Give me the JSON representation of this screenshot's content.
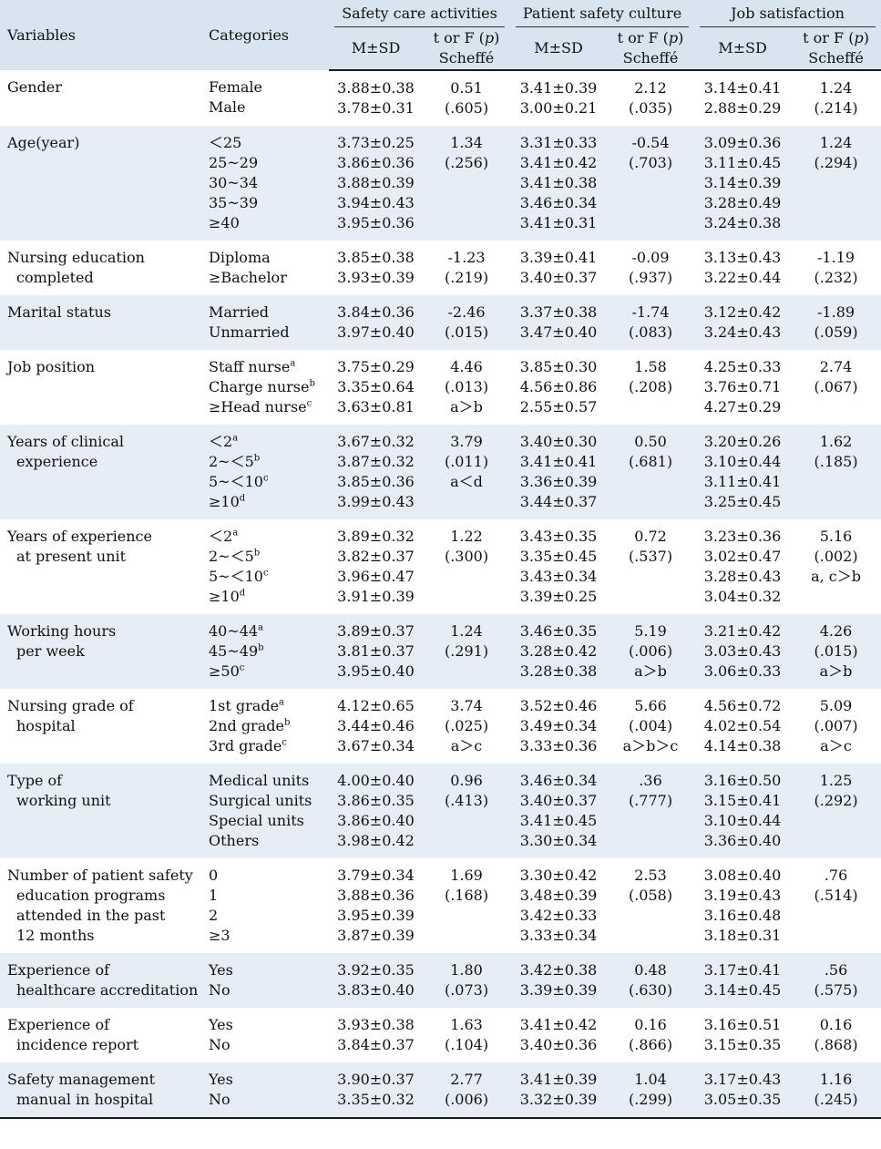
{
  "header": {
    "variables": "Variables",
    "categories": "Categories",
    "groups": [
      "Safety care activities",
      "Patient safety culture",
      "Job satisfaction"
    ],
    "msd": "M±SD",
    "stat_pre": "t or F (",
    "stat_p": "p",
    "stat_post": ")",
    "scheffe": "Scheffé"
  },
  "rows": [
    {
      "var": [
        "Gender"
      ],
      "cats": [
        "Female",
        "Male"
      ],
      "sca_m": [
        "3.88±0.38",
        "3.78±0.31"
      ],
      "sca_t": [
        "0.51",
        "(.605)"
      ],
      "psc_m": [
        "3.41±0.39",
        "3.00±0.21"
      ],
      "psc_t": [
        "2.12",
        "(.035)"
      ],
      "js_m": [
        "3.14±0.41",
        "2.88±0.29"
      ],
      "js_t": [
        "1.24",
        "(.214)"
      ]
    },
    {
      "var": [
        "Age(year)"
      ],
      "cats": [
        "＜25",
        "25~29",
        "30~34",
        "35~39",
        "≥40"
      ],
      "sca_m": [
        "3.73±0.25",
        "3.86±0.36",
        "3.88±0.39",
        "3.94±0.43",
        "3.95±0.36"
      ],
      "sca_t": [
        "1.34",
        "(.256)"
      ],
      "psc_m": [
        "3.31±0.33",
        "3.41±0.42",
        "3.41±0.38",
        "3.46±0.34",
        "3.41±0.31"
      ],
      "psc_t": [
        "-0.54",
        "(.703)"
      ],
      "js_m": [
        "3.09±0.36",
        "3.11±0.45",
        "3.14±0.39",
        "3.28±0.49",
        "3.24±0.38"
      ],
      "js_t": [
        "1.24",
        "(.294)"
      ]
    },
    {
      "var": [
        "Nursing education",
        "completed"
      ],
      "cats": [
        "Diploma",
        "≥Bachelor"
      ],
      "sca_m": [
        "3.85±0.38",
        "3.93±0.39"
      ],
      "sca_t": [
        "-1.23",
        "(.219)"
      ],
      "psc_m": [
        "3.39±0.41",
        "3.40±0.37"
      ],
      "psc_t": [
        "-0.09",
        "(.937)"
      ],
      "js_m": [
        "3.13±0.43",
        "3.22±0.44"
      ],
      "js_t": [
        "-1.19",
        "(.232)"
      ]
    },
    {
      "var": [
        "Marital status"
      ],
      "cats": [
        "Married",
        "Unmarried"
      ],
      "sca_m": [
        "3.84±0.36",
        "3.97±0.40"
      ],
      "sca_t": [
        "-2.46",
        "(.015)"
      ],
      "psc_m": [
        "3.37±0.38",
        "3.47±0.40"
      ],
      "psc_t": [
        "-1.74",
        "(.083)"
      ],
      "js_m": [
        "3.12±0.42",
        "3.24±0.43"
      ],
      "js_t": [
        "-1.89",
        "(.059)"
      ]
    },
    {
      "var": [
        "Job position"
      ],
      "cats": [
        "Staff nurse",
        "Charge nurse",
        "≥Head nurse"
      ],
      "sups": [
        "a",
        "b",
        "c"
      ],
      "sca_m": [
        "3.75±0.29",
        "3.35±0.64",
        "3.63±0.81"
      ],
      "sca_t": [
        "4.46",
        "(.013)",
        "a＞b"
      ],
      "psc_m": [
        "3.85±0.30",
        "4.56±0.86",
        "2.55±0.57"
      ],
      "psc_t": [
        "1.58",
        "(.208)"
      ],
      "js_m": [
        "4.25±0.33",
        "3.76±0.71",
        "4.27±0.29"
      ],
      "js_t": [
        "2.74",
        "(.067)"
      ]
    },
    {
      "var": [
        "Years of clinical",
        "experience"
      ],
      "cats": [
        "＜2",
        "2~＜5",
        "5~＜10",
        "≥10"
      ],
      "sups": [
        "a",
        "b",
        "c",
        "d"
      ],
      "sca_m": [
        "3.67±0.32",
        "3.87±0.32",
        "3.85±0.36",
        "3.99±0.43"
      ],
      "sca_t": [
        "3.79",
        "(.011)",
        "a＜d"
      ],
      "psc_m": [
        "3.40±0.30",
        "3.41±0.41",
        "3.36±0.39",
        "3.44±0.37"
      ],
      "psc_t": [
        "0.50",
        "(.681)"
      ],
      "js_m": [
        "3.20±0.26",
        "3.10±0.44",
        "3.11±0.41",
        "3.25±0.45"
      ],
      "js_t": [
        "1.62",
        "(.185)"
      ]
    },
    {
      "var": [
        "Years of experience",
        "at present unit"
      ],
      "cats": [
        "＜2",
        "2~＜5",
        "5~＜10",
        "≥10"
      ],
      "sups": [
        "a",
        "b",
        "c",
        "d"
      ],
      "sca_m": [
        "3.89±0.32",
        "3.82±0.37",
        "3.96±0.47",
        "3.91±0.39"
      ],
      "sca_t": [
        "1.22",
        "(.300)"
      ],
      "psc_m": [
        "3.43±0.35",
        "3.35±0.45",
        "3.43±0.34",
        "3.39±0.25"
      ],
      "psc_t": [
        "0.72",
        "(.537)"
      ],
      "js_m": [
        "3.23±0.36",
        "3.02±0.47",
        "3.28±0.43",
        "3.04±0.32"
      ],
      "js_t": [
        "5.16",
        "(.002)",
        "a, c＞b"
      ]
    },
    {
      "var": [
        "Working hours",
        "per week"
      ],
      "cats": [
        "40~44",
        "45~49",
        "≥50"
      ],
      "sups": [
        "a",
        "b",
        "c"
      ],
      "sca_m": [
        "3.89±0.37",
        "3.81±0.37",
        "3.95±0.40"
      ],
      "sca_t": [
        "1.24",
        "(.291)"
      ],
      "psc_m": [
        "3.46±0.35",
        "3.28±0.42",
        "3.28±0.38"
      ],
      "psc_t": [
        "5.19",
        "(.006)",
        "a＞b"
      ],
      "js_m": [
        "3.21±0.42",
        "3.03±0.43",
        "3.06±0.33"
      ],
      "js_t": [
        "4.26",
        "(.015)",
        "a＞b"
      ]
    },
    {
      "var": [
        "Nursing grade of",
        "hospital"
      ],
      "cats": [
        "1st grade",
        "2nd grade",
        "3rd grade"
      ],
      "sups": [
        "a",
        "b",
        "c"
      ],
      "sca_m": [
        "4.12±0.65",
        "3.44±0.46",
        "3.67±0.34"
      ],
      "sca_t": [
        "3.74",
        "(.025)",
        "a＞c"
      ],
      "psc_m": [
        "3.52±0.46",
        "3.49±0.34",
        "3.33±0.36"
      ],
      "psc_t": [
        "5.66",
        "(.004)",
        "a＞b＞c"
      ],
      "js_m": [
        "4.56±0.72",
        "4.02±0.54",
        "4.14±0.38"
      ],
      "js_t": [
        "5.09",
        "(.007)",
        "a＞c"
      ]
    },
    {
      "var": [
        "Type of",
        "working unit"
      ],
      "cats": [
        "Medical units",
        "Surgical units",
        "Special units",
        "Others"
      ],
      "sca_m": [
        "4.00±0.40",
        "3.86±0.35",
        "3.86±0.40",
        "3.98±0.42"
      ],
      "sca_t": [
        "0.96",
        "(.413)"
      ],
      "psc_m": [
        "3.46±0.34",
        "3.40±0.37",
        "3.41±0.45",
        "3.30±0.34"
      ],
      "psc_t": [
        ".36",
        "(.777)"
      ],
      "js_m": [
        "3.16±0.50",
        "3.15±0.41",
        "3.10±0.44",
        "3.36±0.40"
      ],
      "js_t": [
        "1.25",
        "(.292)"
      ]
    },
    {
      "var": [
        "Number of patient safety",
        "education programs",
        "attended in the past",
        "12 months"
      ],
      "cats": [
        "0",
        "1",
        "2",
        "≥3"
      ],
      "sca_m": [
        "3.79±0.34",
        "3.88±0.36",
        "3.95±0.39",
        "3.87±0.39"
      ],
      "sca_t": [
        "1.69",
        "(.168)"
      ],
      "psc_m": [
        "3.30±0.42",
        "3.48±0.39",
        "3.42±0.33",
        "3.33±0.34"
      ],
      "psc_t": [
        "2.53",
        "(.058)"
      ],
      "js_m": [
        "3.08±0.40",
        "3.19±0.43",
        "3.16±0.48",
        "3.18±0.31"
      ],
      "js_t": [
        ".76",
        "(.514)"
      ]
    },
    {
      "var": [
        "Experience of",
        "healthcare accreditation"
      ],
      "cats": [
        "Yes",
        "No"
      ],
      "sca_m": [
        "3.92±0.35",
        "3.83±0.40"
      ],
      "sca_t": [
        "1.80",
        "(.073)"
      ],
      "psc_m": [
        "3.42±0.38",
        "3.39±0.39"
      ],
      "psc_t": [
        "0.48",
        "(.630)"
      ],
      "js_m": [
        "3.17±0.41",
        "3.14±0.45"
      ],
      "js_t": [
        ".56",
        "(.575)"
      ]
    },
    {
      "var": [
        "Experience of",
        "incidence report"
      ],
      "cats": [
        "Yes",
        "No"
      ],
      "sca_m": [
        "3.93±0.38",
        "3.84±0.37"
      ],
      "sca_t": [
        "1.63",
        "(.104)"
      ],
      "psc_m": [
        "3.41±0.42",
        "3.40±0.36"
      ],
      "psc_t": [
        "0.16",
        "(.866)"
      ],
      "js_m": [
        "3.16±0.51",
        "3.15±0.35"
      ],
      "js_t": [
        "0.16",
        "(.868)"
      ]
    },
    {
      "var": [
        "Safety management",
        "manual in hospital"
      ],
      "cats": [
        "Yes",
        "No"
      ],
      "sca_m": [
        "3.90±0.37",
        "3.35±0.32"
      ],
      "sca_t": [
        "2.77",
        "(.006)"
      ],
      "psc_m": [
        "3.41±0.39",
        "3.32±0.39"
      ],
      "psc_t": [
        "1.04",
        "(.299)"
      ],
      "js_m": [
        "3.17±0.43",
        "3.05±0.35"
      ],
      "js_t": [
        "1.16",
        "(.245)"
      ]
    }
  ]
}
